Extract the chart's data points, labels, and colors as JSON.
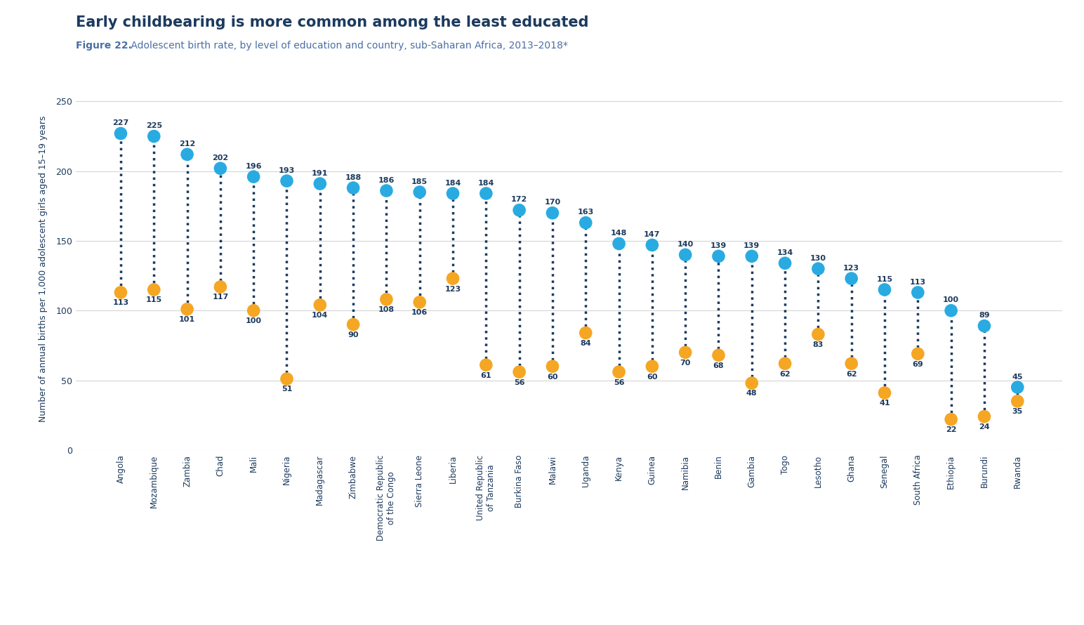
{
  "title": "Early childbearing is more common among the least educated",
  "subtitle_bold": "Figure 22.",
  "subtitle_rest": " Adolescent birth rate, by level of education and country, sub-Saharan Africa, 2013–2018*",
  "ylabel": "Number of annual births per 1,000 adolescent girls aged 15–19 years",
  "countries": [
    "Angola",
    "Mozambique",
    "Zambia",
    "Chad",
    "Mali",
    "Nigeria",
    "Madagascar",
    "Zimbabwe",
    "Democratic Republic\nof the Congo",
    "Sierra Leone",
    "Liberia",
    "United Republic\nof Tanzania",
    "Burkina Faso",
    "Malawi",
    "Uganda",
    "Kenya",
    "Guinea",
    "Namibia",
    "Benin",
    "Gambia",
    "Togo",
    "Lesotho",
    "Ghana",
    "Senegal",
    "South Africa",
    "Ethiopia",
    "Burundi",
    "Rwanda"
  ],
  "no_edu_primary": [
    227,
    225,
    212,
    202,
    196,
    193,
    191,
    188,
    186,
    185,
    184,
    184,
    172,
    170,
    163,
    148,
    147,
    140,
    139,
    139,
    134,
    130,
    123,
    115,
    113,
    100,
    89,
    45
  ],
  "secondary_higher": [
    113,
    115,
    101,
    117,
    100,
    51,
    104,
    90,
    108,
    106,
    123,
    61,
    56,
    60,
    84,
    56,
    60,
    70,
    68,
    48,
    62,
    83,
    62,
    41,
    69,
    22,
    24,
    35
  ],
  "blue_color": "#29ABE2",
  "orange_color": "#F5A623",
  "dark_color": "#1C3A5E",
  "grid_color": "#D5D5D5",
  "ylim": [
    0,
    260
  ],
  "yticks": [
    0,
    50,
    100,
    150,
    200,
    250
  ],
  "background_color": "#FFFFFF"
}
